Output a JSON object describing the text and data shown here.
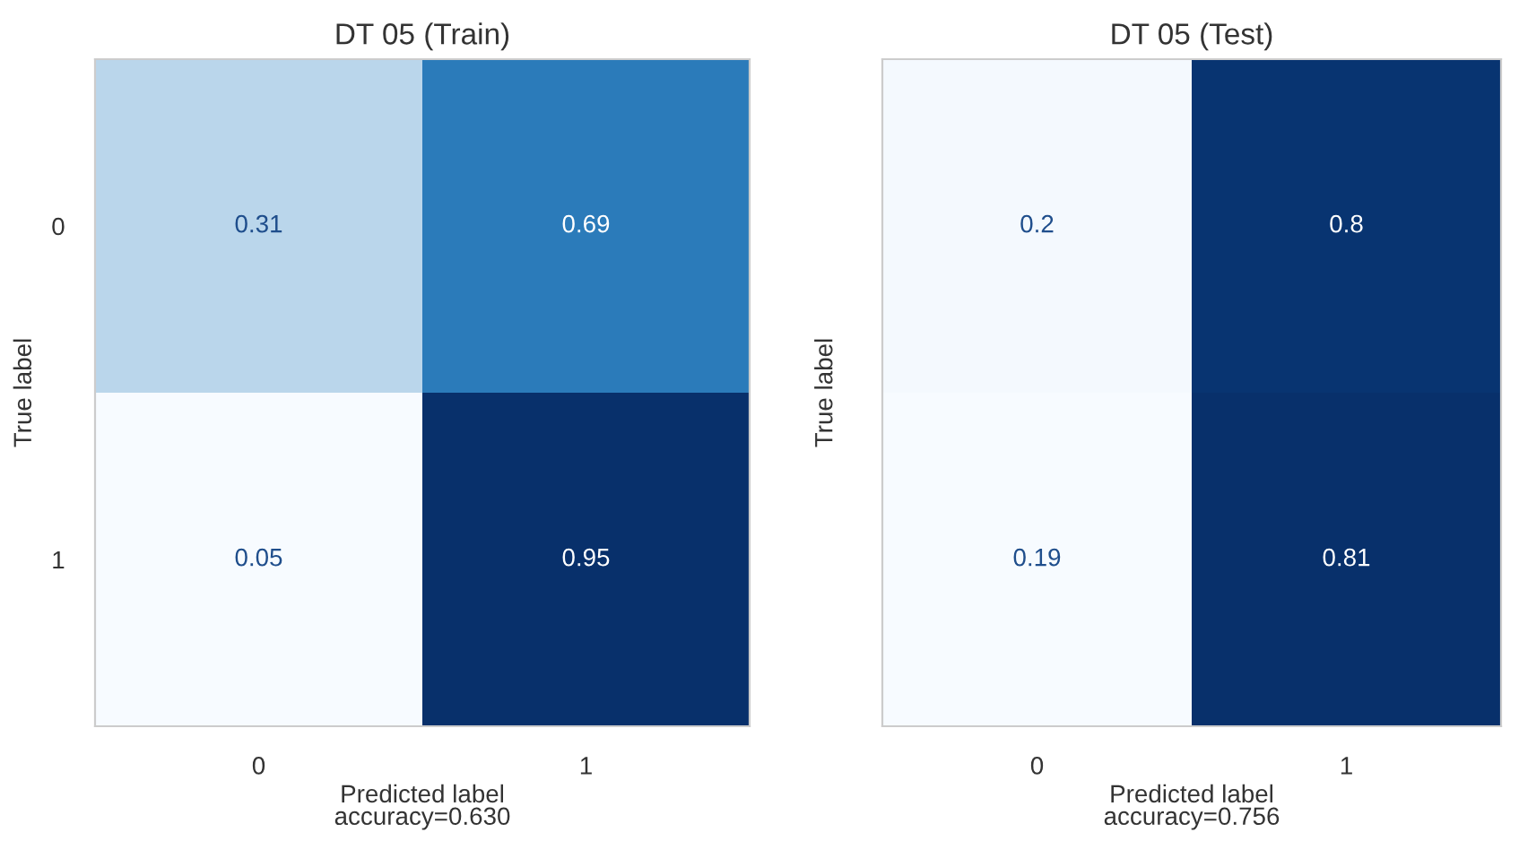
{
  "chart_data": [
    {
      "type": "heatmap",
      "title": "DT 05 (Train)",
      "xlabel": "Predicted label\naccuracy=0.630",
      "ylabel": "True label",
      "categories": [
        "0",
        "1"
      ],
      "y_categories": [
        "0",
        "1"
      ],
      "cells": [
        [
          0.31,
          0.69
        ],
        [
          0.05,
          0.95
        ]
      ],
      "data_labels": true,
      "grid": false
    },
    {
      "type": "heatmap",
      "title": "DT 05 (Test)",
      "xlabel": "Predicted label\naccuracy=0.756",
      "ylabel": "True label",
      "categories": [
        "0",
        "1"
      ],
      "y_categories": [
        null,
        null
      ],
      "cells": [
        [
          0.2,
          0.8
        ],
        [
          0.19,
          0.81
        ]
      ],
      "data_labels": true,
      "grid": false,
      "tick_labels": "x"
    }
  ]
}
